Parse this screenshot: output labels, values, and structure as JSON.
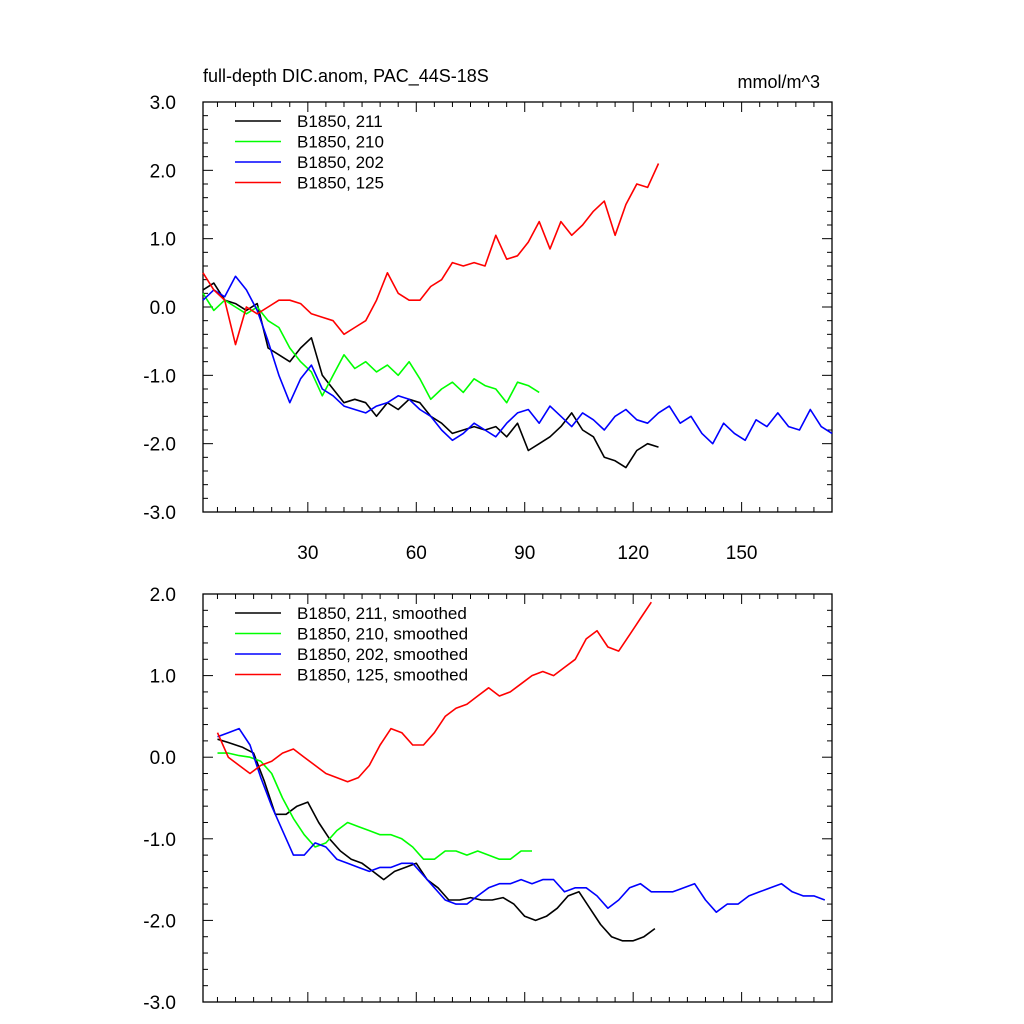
{
  "chart_data": [
    {
      "type": "line",
      "title": "full-depth DIC.anom, PAC_44S-18S",
      "units": "mmol/m^3",
      "xlim": [
        1,
        175
      ],
      "ylim": [
        -3.0,
        3.0
      ],
      "xticks": [
        30,
        60,
        90,
        120,
        150
      ],
      "xtick_labels": [
        "30",
        "60",
        "90",
        "120",
        "150"
      ],
      "yticks": [
        -3.0,
        -2.0,
        -1.0,
        0.0,
        1.0,
        2.0,
        3.0
      ],
      "ytick_labels": [
        "-3.0",
        "-2.0",
        "-1.0",
        "0.0",
        "1.0",
        "2.0",
        "3.0"
      ],
      "grid": false,
      "legend_position": "top-left",
      "series": [
        {
          "name": "B1850, 211",
          "color": "#000000",
          "x": [
            1,
            4,
            7,
            10,
            13,
            16,
            19,
            22,
            25,
            28,
            31,
            34,
            37,
            40,
            43,
            46,
            49,
            52,
            55,
            58,
            61,
            64,
            67,
            70,
            73,
            76,
            79,
            82,
            85,
            88,
            91,
            94,
            97,
            100,
            103,
            106,
            109,
            112,
            115,
            118,
            121,
            124,
            127
          ],
          "y": [
            0.25,
            0.35,
            0.1,
            0.05,
            -0.05,
            0.05,
            -0.6,
            -0.7,
            -0.8,
            -0.6,
            -0.45,
            -1.0,
            -1.2,
            -1.4,
            -1.35,
            -1.4,
            -1.6,
            -1.4,
            -1.5,
            -1.35,
            -1.4,
            -1.6,
            -1.7,
            -1.85,
            -1.8,
            -1.75,
            -1.8,
            -1.75,
            -1.9,
            -1.7,
            -2.1,
            -2.0,
            -1.9,
            -1.75,
            -1.55,
            -1.8,
            -1.9,
            -2.2,
            -2.25,
            -2.35,
            -2.1,
            -2.0,
            -2.05
          ]
        },
        {
          "name": "B1850, 210",
          "color": "#00ff00",
          "x": [
            1,
            4,
            7,
            10,
            13,
            16,
            19,
            22,
            25,
            28,
            31,
            34,
            37,
            40,
            43,
            46,
            49,
            52,
            55,
            58,
            61,
            64,
            67,
            70,
            73,
            76,
            79,
            82,
            85,
            88,
            91,
            94
          ],
          "y": [
            0.2,
            -0.05,
            0.1,
            0.0,
            -0.1,
            0.0,
            -0.2,
            -0.3,
            -0.6,
            -0.8,
            -0.95,
            -1.3,
            -1.0,
            -0.7,
            -0.9,
            -0.8,
            -0.95,
            -0.85,
            -1.0,
            -0.8,
            -1.05,
            -1.35,
            -1.2,
            -1.1,
            -1.25,
            -1.05,
            -1.15,
            -1.2,
            -1.4,
            -1.1,
            -1.15,
            -1.25
          ]
        },
        {
          "name": "B1850, 202",
          "color": "#0000ff",
          "x": [
            1,
            4,
            7,
            10,
            13,
            16,
            19,
            22,
            25,
            28,
            31,
            34,
            37,
            40,
            43,
            46,
            49,
            52,
            55,
            58,
            61,
            64,
            67,
            70,
            73,
            76,
            79,
            82,
            85,
            88,
            91,
            94,
            97,
            100,
            103,
            106,
            109,
            112,
            115,
            118,
            121,
            124,
            127,
            130,
            133,
            136,
            139,
            142,
            145,
            148,
            151,
            154,
            157,
            160,
            163,
            166,
            169,
            172,
            175
          ],
          "y": [
            0.1,
            0.25,
            0.15,
            0.45,
            0.25,
            -0.05,
            -0.5,
            -1.0,
            -1.4,
            -1.05,
            -0.85,
            -1.2,
            -1.3,
            -1.45,
            -1.5,
            -1.55,
            -1.45,
            -1.4,
            -1.3,
            -1.35,
            -1.5,
            -1.6,
            -1.8,
            -1.95,
            -1.85,
            -1.7,
            -1.8,
            -1.9,
            -1.7,
            -1.55,
            -1.5,
            -1.7,
            -1.45,
            -1.6,
            -1.75,
            -1.55,
            -1.65,
            -1.8,
            -1.6,
            -1.5,
            -1.65,
            -1.7,
            -1.55,
            -1.45,
            -1.7,
            -1.6,
            -1.85,
            -2.0,
            -1.7,
            -1.85,
            -1.95,
            -1.65,
            -1.75,
            -1.55,
            -1.75,
            -1.8,
            -1.5,
            -1.75,
            -1.85
          ]
        },
        {
          "name": "B1850, 125",
          "color": "#ff0000",
          "x": [
            1,
            4,
            7,
            10,
            13,
            16,
            19,
            22,
            25,
            28,
            31,
            34,
            37,
            40,
            43,
            46,
            49,
            52,
            55,
            58,
            61,
            64,
            67,
            70,
            73,
            76,
            79,
            82,
            85,
            88,
            91,
            94,
            97,
            100,
            103,
            106,
            109,
            112,
            115,
            118,
            121,
            124,
            127
          ],
          "y": [
            0.5,
            0.25,
            0.1,
            -0.55,
            0.0,
            -0.1,
            0.0,
            0.1,
            0.1,
            0.05,
            -0.1,
            -0.15,
            -0.2,
            -0.4,
            -0.3,
            -0.2,
            0.1,
            0.5,
            0.2,
            0.1,
            0.1,
            0.3,
            0.4,
            0.65,
            0.6,
            0.65,
            0.6,
            1.05,
            0.7,
            0.75,
            0.95,
            1.25,
            0.85,
            1.25,
            1.05,
            1.2,
            1.4,
            1.55,
            1.05,
            1.5,
            1.8,
            1.75,
            2.1
          ]
        }
      ]
    },
    {
      "type": "line",
      "title": "",
      "xlim": [
        1,
        175
      ],
      "ylim": [
        -3.0,
        2.0
      ],
      "xticks": [
        30,
        60,
        90,
        120,
        150
      ],
      "xtick_labels": [],
      "yticks": [
        -3.0,
        -2.0,
        -1.0,
        0.0,
        1.0,
        2.0
      ],
      "ytick_labels": [
        "-3.0",
        "-2.0",
        "-1.0",
        "0.0",
        "1.0",
        "2.0"
      ],
      "grid": false,
      "legend_position": "top-left",
      "series": [
        {
          "name": "B1850, 211, smoothed",
          "color": "#000000",
          "x": [
            5,
            8,
            12,
            15,
            18,
            21,
            24,
            27,
            30,
            33,
            36,
            39,
            42,
            45,
            48,
            51,
            54,
            57,
            60,
            63,
            66,
            69,
            72,
            75,
            78,
            81,
            84,
            87,
            90,
            93,
            96,
            99,
            102,
            105,
            108,
            111,
            114,
            117,
            120,
            123,
            126
          ],
          "y": [
            0.22,
            0.18,
            0.12,
            0.05,
            -0.3,
            -0.7,
            -0.7,
            -0.6,
            -0.55,
            -0.8,
            -1.0,
            -1.15,
            -1.25,
            -1.3,
            -1.4,
            -1.5,
            -1.4,
            -1.35,
            -1.3,
            -1.5,
            -1.6,
            -1.75,
            -1.75,
            -1.72,
            -1.75,
            -1.75,
            -1.72,
            -1.8,
            -1.95,
            -2.0,
            -1.95,
            -1.85,
            -1.7,
            -1.65,
            -1.85,
            -2.05,
            -2.2,
            -2.25,
            -2.25,
            -2.2,
            -2.1
          ]
        },
        {
          "name": "B1850, 210, smoothed",
          "color": "#00ff00",
          "x": [
            5,
            8,
            11,
            14,
            17,
            20,
            23,
            26,
            29,
            32,
            35,
            38,
            41,
            44,
            47,
            50,
            53,
            56,
            59,
            62,
            65,
            68,
            71,
            74,
            77,
            80,
            83,
            86,
            89,
            92
          ],
          "y": [
            0.05,
            0.05,
            0.02,
            0.0,
            -0.05,
            -0.2,
            -0.5,
            -0.75,
            -0.95,
            -1.1,
            -1.05,
            -0.9,
            -0.8,
            -0.85,
            -0.9,
            -0.95,
            -0.95,
            -1.0,
            -1.1,
            -1.25,
            -1.25,
            -1.15,
            -1.15,
            -1.2,
            -1.15,
            -1.2,
            -1.25,
            -1.25,
            -1.15,
            -1.15
          ]
        },
        {
          "name": "B1850, 202, smoothed",
          "color": "#0000ff",
          "x": [
            5,
            8,
            11,
            14,
            17,
            20,
            23,
            26,
            29,
            32,
            35,
            38,
            41,
            44,
            47,
            50,
            53,
            56,
            59,
            62,
            65,
            68,
            71,
            74,
            77,
            80,
            83,
            86,
            89,
            92,
            95,
            98,
            101,
            104,
            107,
            110,
            113,
            116,
            119,
            122,
            125,
            128,
            131,
            134,
            137,
            140,
            143,
            146,
            149,
            152,
            155,
            158,
            161,
            164,
            167,
            170,
            173
          ],
          "y": [
            0.25,
            0.3,
            0.35,
            0.15,
            -0.25,
            -0.6,
            -0.9,
            -1.2,
            -1.2,
            -1.05,
            -1.1,
            -1.25,
            -1.3,
            -1.35,
            -1.4,
            -1.35,
            -1.35,
            -1.3,
            -1.3,
            -1.45,
            -1.6,
            -1.75,
            -1.8,
            -1.8,
            -1.7,
            -1.6,
            -1.55,
            -1.55,
            -1.5,
            -1.55,
            -1.5,
            -1.5,
            -1.65,
            -1.6,
            -1.6,
            -1.7,
            -1.85,
            -1.75,
            -1.6,
            -1.55,
            -1.65,
            -1.65,
            -1.65,
            -1.6,
            -1.55,
            -1.75,
            -1.9,
            -1.8,
            -1.8,
            -1.7,
            -1.65,
            -1.6,
            -1.55,
            -1.65,
            -1.7,
            -1.7,
            -1.75
          ]
        },
        {
          "name": "B1850, 125, smoothed",
          "color": "#ff0000",
          "x": [
            5,
            8,
            11,
            14,
            17,
            20,
            23,
            26,
            29,
            32,
            35,
            38,
            41,
            44,
            47,
            50,
            53,
            56,
            59,
            62,
            65,
            68,
            71,
            74,
            77,
            80,
            83,
            86,
            89,
            92,
            95,
            98,
            101,
            104,
            107,
            110,
            113,
            116,
            119,
            122,
            125
          ],
          "y": [
            0.3,
            0.0,
            -0.1,
            -0.2,
            -0.1,
            -0.05,
            0.05,
            0.1,
            0.0,
            -0.1,
            -0.2,
            -0.25,
            -0.3,
            -0.25,
            -0.1,
            0.15,
            0.35,
            0.3,
            0.15,
            0.15,
            0.3,
            0.5,
            0.6,
            0.65,
            0.75,
            0.85,
            0.75,
            0.8,
            0.9,
            1.0,
            1.05,
            1.0,
            1.1,
            1.2,
            1.45,
            1.55,
            1.35,
            1.3,
            1.5,
            1.7,
            1.9
          ]
        }
      ]
    }
  ]
}
